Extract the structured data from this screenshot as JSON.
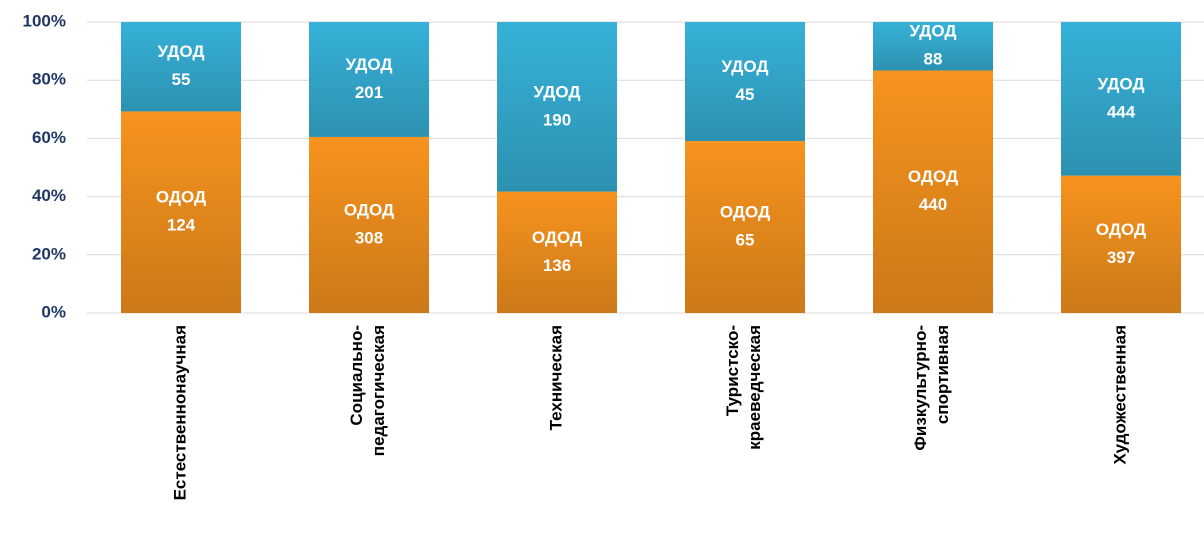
{
  "chart_data": {
    "type": "bar",
    "stacking": "percent",
    "categories": [
      "Естественнонаучная",
      "Социально-педагогическая",
      "Техническая",
      "Туристско-краеведческая",
      "Физкультурно-спортивная",
      "Художественная"
    ],
    "series": [
      {
        "name": "ОДОД",
        "color": "#f7931e",
        "values": [
          124,
          308,
          136,
          65,
          440,
          397
        ]
      },
      {
        "name": "УДОД",
        "color": "#36b1d8",
        "values": [
          55,
          201,
          190,
          45,
          88,
          444
        ]
      }
    ],
    "ylim": [
      0,
      100
    ],
    "yticks": [
      {
        "value": 0,
        "label": "0%"
      },
      {
        "value": 20,
        "label": "20%"
      },
      {
        "value": 40,
        "label": "40%"
      },
      {
        "value": 60,
        "label": "60%"
      },
      {
        "value": 80,
        "label": "80%"
      },
      {
        "value": 100,
        "label": "100%"
      }
    ],
    "grid": true
  }
}
